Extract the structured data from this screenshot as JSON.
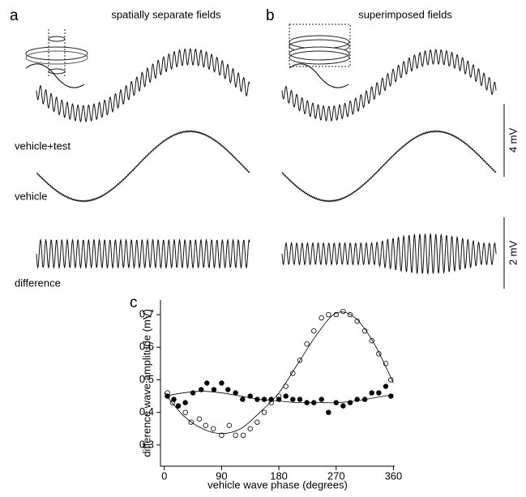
{
  "panels": {
    "a": {
      "label": "a",
      "title": "spatially separate fields",
      "trace_labels": [
        "vehicle+test",
        "vehicle",
        "difference"
      ]
    },
    "b": {
      "label": "b",
      "title": "superimposed fields",
      "scale_bars": [
        "4 mV",
        "2 mV"
      ]
    }
  },
  "chart_data": {
    "type": "scatter",
    "panel_label": "c",
    "x_label": "vehicle wave phase (degrees)",
    "y_label": "difference wave amplitude (mV)",
    "xlim": [
      -6,
      362
    ],
    "ylim": [
      0.235,
      0.745
    ],
    "xticks": [
      0,
      90,
      180,
      270,
      360
    ],
    "yticks": [
      0.3,
      0.4,
      0.5,
      0.6,
      0.7
    ],
    "series": [
      {
        "marker": "open",
        "color": "#000000",
        "x": [
          5,
          13,
          22,
          33,
          42,
          55,
          65,
          77,
          90,
          102,
          112,
          124,
          135,
          146,
          157,
          168,
          180,
          191,
          202,
          213,
          224,
          235,
          247,
          258,
          270,
          281,
          292,
          303,
          315,
          326,
          337,
          348,
          356
        ],
        "values": [
          0.46,
          0.43,
          0.42,
          0.4,
          0.37,
          0.38,
          0.36,
          0.35,
          0.33,
          0.36,
          0.33,
          0.33,
          0.35,
          0.37,
          0.4,
          0.43,
          0.45,
          0.48,
          0.52,
          0.56,
          0.61,
          0.65,
          0.69,
          0.7,
          0.7,
          0.71,
          0.7,
          0.68,
          0.65,
          0.62,
          0.58,
          0.55,
          0.5
        ]
      },
      {
        "marker": "filled",
        "color": "#000000",
        "x": [
          5,
          15,
          22,
          33,
          45,
          58,
          67,
          78,
          90,
          100,
          112,
          123,
          135,
          146,
          157,
          168,
          180,
          191,
          202,
          213,
          224,
          235,
          247,
          258,
          270,
          281,
          292,
          303,
          315,
          326,
          337,
          348,
          356
        ],
        "values": [
          0.45,
          0.44,
          0.42,
          0.43,
          0.46,
          0.47,
          0.49,
          0.47,
          0.49,
          0.47,
          0.46,
          0.44,
          0.45,
          0.44,
          0.44,
          0.44,
          0.44,
          0.45,
          0.44,
          0.44,
          0.43,
          0.43,
          0.44,
          0.4,
          0.43,
          0.42,
          0.43,
          0.44,
          0.44,
          0.46,
          0.46,
          0.48,
          0.45
        ]
      },
      {
        "marker": "line",
        "color": "#000000",
        "x": [
          0,
          30,
          60,
          90,
          120,
          150,
          180,
          210,
          240,
          270,
          300,
          330,
          360
        ],
        "values": [
          0.46,
          0.39,
          0.35,
          0.335,
          0.35,
          0.4,
          0.46,
          0.55,
          0.64,
          0.705,
          0.69,
          0.61,
          0.49
        ]
      },
      {
        "marker": "line",
        "color": "#000000",
        "x": [
          0,
          30,
          60,
          90,
          120,
          150,
          180,
          210,
          240,
          270,
          300,
          330,
          360
        ],
        "values": [
          0.45,
          0.46,
          0.465,
          0.46,
          0.45,
          0.44,
          0.435,
          0.43,
          0.43,
          0.43,
          0.435,
          0.445,
          0.455
        ]
      }
    ]
  }
}
